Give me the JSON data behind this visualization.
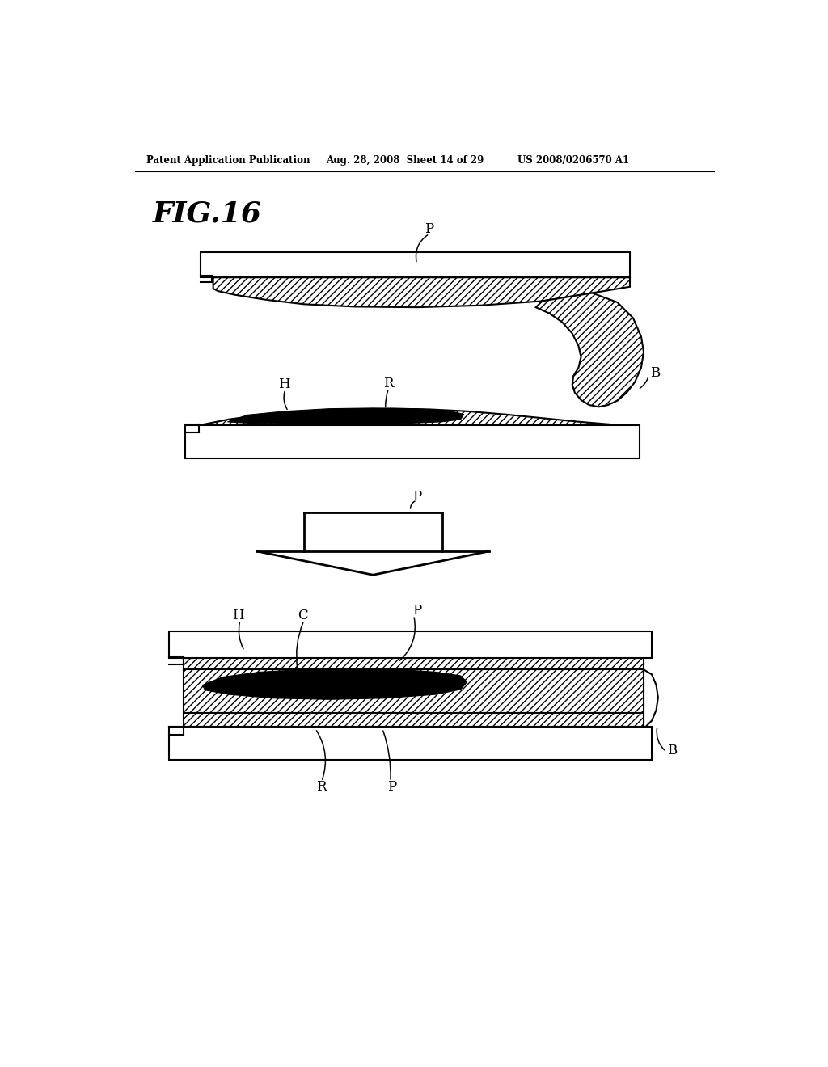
{
  "header_left": "Patent Application Publication",
  "header_mid": "Aug. 28, 2008  Sheet 14 of 29",
  "header_right": "US 2008/0206570 A1",
  "bg_color": "#ffffff",
  "line_color": "#000000"
}
